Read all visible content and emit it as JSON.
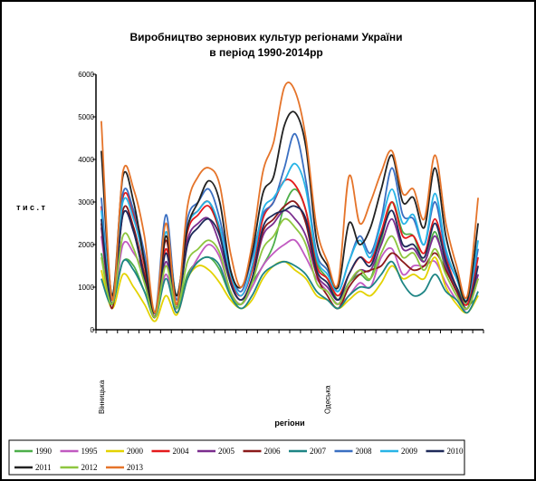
{
  "chart_data": {
    "type": "line",
    "title": "Виробництво зернових культур регіонами України",
    "subtitle": "в період 1990-2014рр",
    "xlabel": "регіони",
    "ylabel": "т и с . т",
    "ylim": [
      0,
      6000
    ],
    "yticks": [
      0,
      1000,
      2000,
      3000,
      4000,
      5000,
      6000
    ],
    "categories": [
      "Вінницька",
      "",
      "",
      "",
      "",
      "",
      "",
      "",
      "",
      "",
      "",
      "",
      "",
      "",
      "",
      "",
      "",
      "",
      "",
      "",
      "",
      "Одеська",
      "",
      "",
      "",
      "",
      "",
      "",
      "",
      "",
      "",
      "",
      "",
      "",
      "",
      ""
    ],
    "legend_position": "bottom",
    "grid": false,
    "series": [
      {
        "name": "1990",
        "color": "#4daf4a",
        "values": [
          1800,
          700,
          1600,
          1500,
          900,
          400,
          1300,
          500,
          1300,
          1600,
          1700,
          1400,
          800,
          600,
          1100,
          1500,
          2000,
          2900,
          3300,
          2800,
          1600,
          1200,
          700,
          1100,
          1300,
          1200,
          2100,
          3000,
          2300,
          2200,
          1600,
          2300,
          1400,
          1000,
          600,
          800
        ]
      },
      {
        "name": "1995",
        "color": "#c15ac1",
        "values": [
          2200,
          600,
          2000,
          1800,
          1300,
          300,
          1300,
          400,
          1200,
          1700,
          2000,
          1700,
          900,
          600,
          1000,
          1500,
          1800,
          2000,
          2100,
          1700,
          1200,
          900,
          600,
          800,
          1100,
          1000,
          1700,
          1900,
          1300,
          1500,
          1500,
          1600,
          1100,
          700,
          500,
          1300
        ]
      },
      {
        "name": "2000",
        "color": "#e3d200",
        "values": [
          1400,
          500,
          1300,
          1000,
          600,
          200,
          800,
          350,
          1200,
          1500,
          1400,
          1100,
          700,
          500,
          700,
          1200,
          1500,
          1600,
          1400,
          1200,
          800,
          700,
          500,
          700,
          900,
          800,
          1100,
          1500,
          1200,
          1300,
          1200,
          1700,
          1000,
          600,
          400,
          800
        ]
      },
      {
        "name": "2004",
        "color": "#e41a1c",
        "values": [
          2900,
          700,
          3100,
          2700,
          1500,
          300,
          1900,
          600,
          2300,
          2700,
          2900,
          2300,
          1200,
          800,
          1400,
          2600,
          3000,
          3500,
          3400,
          2800,
          1500,
          1200,
          800,
          1300,
          1700,
          1600,
          2300,
          3000,
          2200,
          2200,
          1800,
          2600,
          1700,
          1000,
          600,
          1700
        ]
      },
      {
        "name": "2005",
        "color": "#7b2d8e",
        "values": [
          2400,
          600,
          2700,
          2300,
          1200,
          300,
          1600,
          500,
          2100,
          2500,
          2600,
          2000,
          1100,
          700,
          1200,
          2200,
          2500,
          2800,
          2600,
          2200,
          1300,
          1000,
          700,
          1100,
          1400,
          1400,
          2000,
          2600,
          1900,
          1900,
          1600,
          2200,
          1500,
          900,
          500,
          1300
        ]
      },
      {
        "name": "2006",
        "color": "#8b1a1a",
        "values": [
          2500,
          500,
          2800,
          2400,
          1300,
          300,
          2100,
          500,
          2400,
          2800,
          3000,
          2300,
          1100,
          700,
          1200,
          2300,
          2600,
          2900,
          3000,
          2500,
          1300,
          800,
          500,
          1000,
          1300,
          1400,
          1500,
          1800,
          1600,
          1400,
          1500,
          1800,
          1400,
          900,
          500,
          1200
        ]
      },
      {
        "name": "2007",
        "color": "#1e8585",
        "values": [
          1200,
          600,
          1600,
          1400,
          900,
          300,
          1200,
          400,
          1200,
          1600,
          1700,
          1500,
          800,
          500,
          800,
          1300,
          1500,
          1600,
          1500,
          1300,
          900,
          700,
          500,
          800,
          1000,
          1000,
          1300,
          1600,
          1100,
          800,
          900,
          1300,
          900,
          700,
          400,
          900
        ]
      },
      {
        "name": "2008",
        "color": "#3a6fc2",
        "values": [
          3100,
          700,
          3200,
          2800,
          1800,
          400,
          2700,
          700,
          2600,
          3000,
          3300,
          2600,
          1400,
          900,
          1700,
          2700,
          3000,
          3800,
          4600,
          3500,
          1800,
          1400,
          900,
          1600,
          2200,
          1800,
          2600,
          3800,
          2700,
          2600,
          2000,
          3000,
          1800,
          1200,
          700,
          1900
        ]
      },
      {
        "name": "2009",
        "color": "#28b4e6",
        "values": [
          2800,
          800,
          3000,
          2600,
          1600,
          400,
          2300,
          800,
          2400,
          2800,
          3000,
          2400,
          1300,
          800,
          1500,
          2800,
          3100,
          3500,
          3900,
          3300,
          1700,
          1300,
          900,
          1600,
          2100,
          1700,
          2500,
          3300,
          2500,
          2700,
          2000,
          3200,
          1900,
          1200,
          700,
          2100
        ]
      },
      {
        "name": "2010",
        "color": "#1f2a5a",
        "values": [
          2600,
          600,
          2700,
          2300,
          1200,
          300,
          1800,
          500,
          2000,
          2400,
          2600,
          2200,
          1100,
          700,
          1200,
          2400,
          2700,
          2800,
          2900,
          2600,
          1400,
          1100,
          700,
          1300,
          1700,
          1500,
          2200,
          2800,
          2000,
          2000,
          1700,
          2500,
          1600,
          1000,
          500,
          1500
        ]
      },
      {
        "name": "2011",
        "color": "#222222",
        "values": [
          4200,
          800,
          3600,
          3000,
          1600,
          400,
          2200,
          800,
          2400,
          3000,
          3500,
          3000,
          1400,
          1000,
          1800,
          3200,
          3600,
          4800,
          5100,
          4300,
          2100,
          1500,
          1000,
          2500,
          2000,
          2400,
          3300,
          4100,
          3000,
          3100,
          2400,
          3800,
          2200,
          1300,
          700,
          2500
        ]
      },
      {
        "name": "2012",
        "color": "#8ec63f",
        "values": [
          1700,
          600,
          2200,
          1900,
          1100,
          300,
          1500,
          500,
          1600,
          1900,
          2100,
          1800,
          900,
          600,
          1100,
          1900,
          2200,
          2600,
          2400,
          2000,
          1100,
          900,
          600,
          1100,
          1400,
          1200,
          1800,
          2200,
          1700,
          1800,
          1400,
          1900,
          1300,
          800,
          500,
          1200
        ]
      },
      {
        "name": "2013",
        "color": "#e5742a",
        "values": [
          4900,
          700,
          3700,
          3300,
          2200,
          400,
          2500,
          600,
          2900,
          3600,
          3800,
          3400,
          1800,
          1000,
          2000,
          3700,
          4400,
          5700,
          5600,
          4500,
          2400,
          1600,
          1100,
          3600,
          2500,
          3000,
          3700,
          4200,
          3200,
          3300,
          2600,
          4100,
          2500,
          1500,
          800,
          3100
        ]
      }
    ]
  }
}
